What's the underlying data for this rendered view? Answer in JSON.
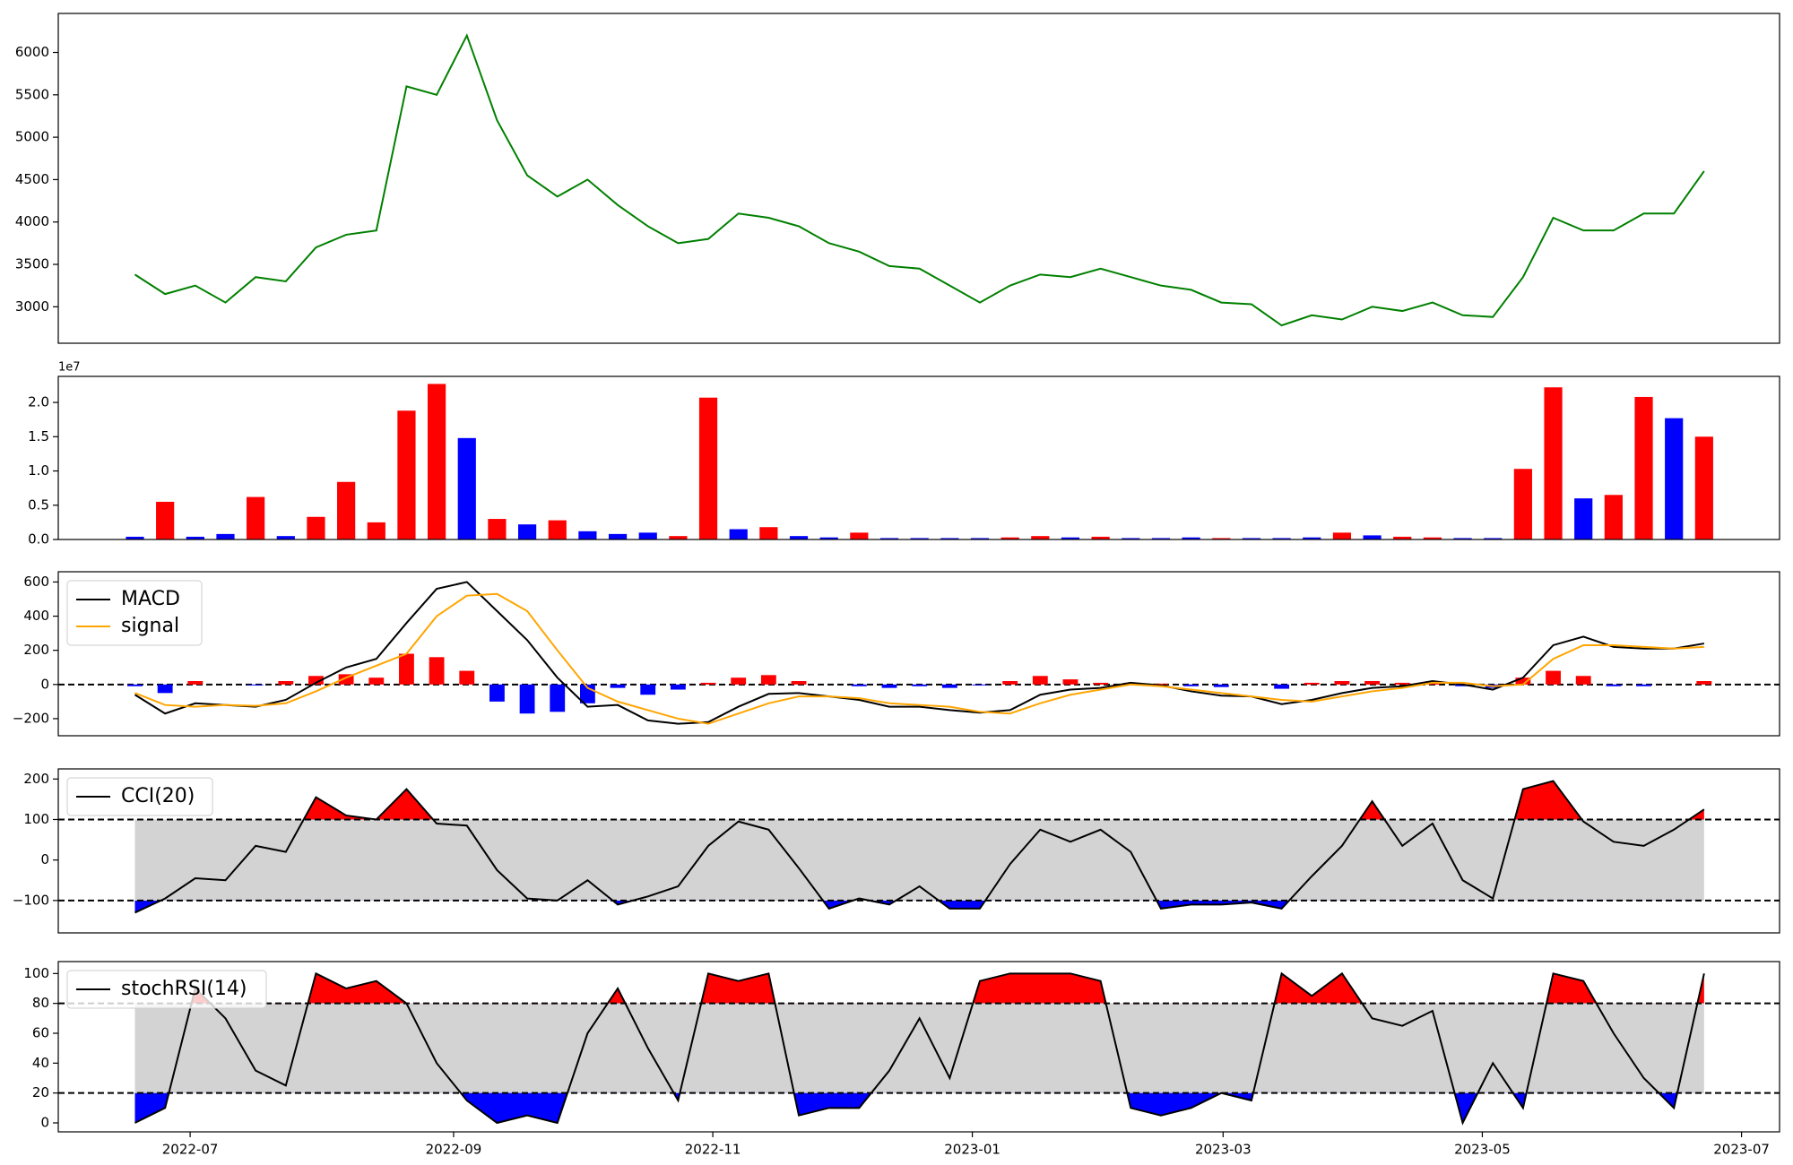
{
  "chart_data": [
    {
      "type": "line",
      "series": [
        {
          "color": "#008000",
          "values": [
            3380,
            3150,
            3250,
            3050,
            3350,
            3300,
            3700,
            3850,
            3900,
            5600,
            5500,
            6200,
            5200,
            4550,
            4300,
            4500,
            4200,
            3950,
            3750,
            3800,
            4100,
            4050,
            3950,
            3750,
            3650,
            3480,
            3450,
            3250,
            3050,
            3250,
            3380,
            3350,
            3450,
            3350,
            3250,
            3200,
            3050,
            3030,
            2780,
            2900,
            2850,
            3000,
            2950,
            3050,
            2900,
            2880,
            3350,
            4050,
            3900,
            3900,
            4100,
            4100,
            4600
          ]
        }
      ],
      "ylim": [
        2570,
        6460
      ],
      "yticks": [
        3000,
        3500,
        4000,
        4500,
        5000,
        5500,
        6000
      ]
    },
    {
      "type": "bar",
      "offset_text": "1e7",
      "values": [
        0.04,
        0.55,
        0.04,
        0.08,
        0.62,
        0.05,
        0.33,
        0.84,
        0.25,
        1.88,
        2.27,
        1.48,
        0.3,
        0.22,
        0.28,
        0.12,
        0.08,
        0.1,
        0.05,
        2.07,
        0.15,
        0.18,
        0.05,
        0.03,
        0.1,
        0.02,
        0.02,
        0.02,
        0.02,
        0.03,
        0.05,
        0.03,
        0.04,
        0.02,
        0.02,
        0.03,
        0.02,
        0.02,
        0.02,
        0.03,
        0.1,
        0.06,
        0.04,
        0.03,
        0.02,
        0.02,
        1.03,
        2.22,
        0.6,
        0.65,
        2.08,
        1.77,
        1.5
      ],
      "colors": [
        "blue",
        "red",
        "blue",
        "blue",
        "red",
        "blue",
        "red",
        "red",
        "red",
        "red",
        "red",
        "blue",
        "red",
        "blue",
        "red",
        "blue",
        "blue",
        "blue",
        "red",
        "red",
        "blue",
        "red",
        "blue",
        "blue",
        "red",
        "blue",
        "blue",
        "blue",
        "blue",
        "red",
        "red",
        "blue",
        "red",
        "blue",
        "blue",
        "blue",
        "red",
        "blue",
        "blue",
        "blue",
        "red",
        "blue",
        "red",
        "red",
        "blue",
        "blue",
        "red",
        "red",
        "blue",
        "red",
        "red",
        "blue",
        "red"
      ],
      "ylim": [
        0,
        2.38
      ],
      "yticks": [
        {
          "value": 0,
          "label": "0.0"
        },
        {
          "value": 0.5,
          "label": "0.5"
        },
        {
          "value": 1,
          "label": "1.0"
        },
        {
          "value": 1.5,
          "label": "1.5"
        },
        {
          "value": 2,
          "label": "2.0"
        }
      ]
    },
    {
      "type": "line",
      "legend": "upper left",
      "hlines": [
        0
      ],
      "series": [
        {
          "name": "MACD",
          "color": "#000000",
          "values": [
            -60,
            -170,
            -110,
            -120,
            -130,
            -90,
            10,
            100,
            150,
            360,
            560,
            600,
            430,
            260,
            40,
            -130,
            -120,
            -210,
            -230,
            -220,
            -130,
            -55,
            -50,
            -70,
            -90,
            -130,
            -130,
            -150,
            -165,
            -150,
            -60,
            -30,
            -20,
            10,
            -5,
            -40,
            -65,
            -70,
            -115,
            -90,
            -50,
            -20,
            -10,
            20,
            0,
            -30,
            40,
            230,
            280,
            220,
            210,
            210,
            240
          ]
        },
        {
          "name": "signal",
          "color": "#ffa500",
          "values": [
            -50,
            -120,
            -130,
            -120,
            -125,
            -110,
            -40,
            40,
            110,
            180,
            400,
            520,
            530,
            430,
            200,
            -20,
            -100,
            -150,
            -200,
            -230,
            -170,
            -110,
            -70,
            -70,
            -80,
            -110,
            -120,
            -130,
            -160,
            -170,
            -110,
            -60,
            -30,
            0,
            -10,
            -30,
            -50,
            -70,
            -90,
            -100,
            -70,
            -40,
            -20,
            10,
            10,
            -10,
            0,
            150,
            230,
            230,
            220,
            210,
            220
          ]
        }
      ],
      "histogram": {
        "positive_color": "#ff0000",
        "negative_color": "#0000ff",
        "values": [
          -10,
          -50,
          20,
          0,
          -5,
          20,
          50,
          60,
          40,
          180,
          160,
          80,
          -100,
          -170,
          -160,
          -110,
          -20,
          -60,
          -30,
          10,
          40,
          55,
          20,
          0,
          -10,
          -20,
          -10,
          -20,
          -5,
          20,
          50,
          30,
          10,
          10,
          5,
          -10,
          -15,
          0,
          -25,
          10,
          20,
          20,
          10,
          10,
          -10,
          -20,
          40,
          80,
          50,
          -10,
          -10,
          0,
          20
        ]
      },
      "ylim": [
        -300,
        660
      ],
      "yticks": [
        {
          "value": -200,
          "label": "−200"
        },
        0,
        200,
        400,
        600
      ]
    },
    {
      "type": "line",
      "legend": "upper left",
      "band": [
        -100,
        100
      ],
      "band_color": "#d3d3d3",
      "above_color": "#ff0000",
      "below_color": "#0000ff",
      "series": [
        {
          "name": "CCI(20)",
          "color": "#000000",
          "values": [
            -130,
            -95,
            -45,
            -50,
            35,
            20,
            155,
            110,
            100,
            175,
            90,
            85,
            -25,
            -95,
            -100,
            -50,
            -110,
            -90,
            -65,
            35,
            95,
            75,
            -20,
            -120,
            -95,
            -110,
            -65,
            -120,
            -120,
            -10,
            75,
            45,
            75,
            20,
            -120,
            -110,
            -110,
            -105,
            -120,
            -40,
            35,
            145,
            35,
            90,
            -50,
            -95,
            175,
            195,
            95,
            45,
            35,
            75,
            125
          ]
        }
      ],
      "ylim": [
        -180,
        225
      ],
      "yticks": [
        {
          "value": -100,
          "label": "−100"
        },
        0,
        100,
        200
      ]
    },
    {
      "type": "line",
      "legend": "upper left",
      "band": [
        20,
        80
      ],
      "band_color": "#d3d3d3",
      "above_color": "#ff0000",
      "below_color": "#0000ff",
      "series": [
        {
          "name": "stochRSI(14)",
          "color": "#000000",
          "values": [
            0,
            10,
            90,
            70,
            35,
            25,
            100,
            90,
            95,
            80,
            40,
            15,
            0,
            5,
            0,
            60,
            90,
            50,
            15,
            100,
            95,
            100,
            5,
            10,
            10,
            35,
            70,
            30,
            95,
            100,
            100,
            100,
            95,
            10,
            5,
            10,
            20,
            15,
            100,
            85,
            100,
            70,
            65,
            75,
            0,
            40,
            10,
            100,
            95,
            60,
            30,
            10,
            100
          ]
        }
      ],
      "ylim": [
        -6,
        108
      ],
      "yticks": [
        0,
        20,
        40,
        60,
        80,
        100
      ],
      "xlim": [
        -2.54,
        54.5
      ],
      "xticks": [
        {
          "value": 1.83,
          "label": "2022-07"
        },
        {
          "value": 10.56,
          "label": "2022-09"
        },
        {
          "value": 19.15,
          "label": "2022-11"
        },
        {
          "value": 27.75,
          "label": "2023-01"
        },
        {
          "value": 36.06,
          "label": "2023-03"
        },
        {
          "value": 44.65,
          "label": "2023-05"
        },
        {
          "value": 53.24,
          "label": "2023-07"
        }
      ]
    }
  ]
}
